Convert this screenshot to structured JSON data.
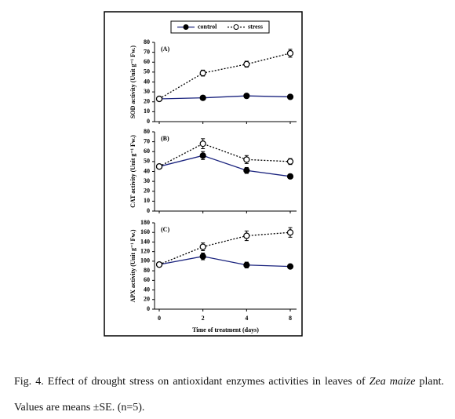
{
  "chart_data": [
    {
      "type": "line",
      "title": "(A)",
      "ylabel": "SOD activity (Unit g⁻¹ Fw.)",
      "ylim": [
        0,
        80
      ],
      "yticks": [
        0,
        10,
        20,
        30,
        40,
        50,
        60,
        70,
        80
      ],
      "legend": "top",
      "series": [
        {
          "name": "control",
          "color": "#1a237e",
          "line_style": "solid",
          "marker_fill": "#000000",
          "values": [
            23,
            24,
            26,
            25
          ],
          "errors": [
            null,
            1,
            1,
            1
          ]
        },
        {
          "name": "stress",
          "color": "#000000",
          "line_style": "dotted",
          "marker_fill": "#ffffff",
          "values": [
            23,
            49,
            58,
            69
          ],
          "errors": [
            null,
            3,
            3,
            4
          ]
        }
      ]
    },
    {
      "type": "line",
      "title": "(B)",
      "ylabel": "CAT activity (Unit g⁻¹ Fw.)",
      "ylim": [
        0,
        80
      ],
      "yticks": [
        0,
        10,
        20,
        30,
        40,
        50,
        60,
        70,
        80
      ],
      "series": [
        {
          "color": "#1a237e",
          "line_style": "solid",
          "marker_fill": "#000000",
          "values": [
            45,
            56,
            41,
            35
          ],
          "errors": [
            null,
            4,
            3,
            1
          ]
        },
        {
          "color": "#000000",
          "line_style": "dotted",
          "marker_fill": "#ffffff",
          "values": [
            45,
            68,
            52,
            50
          ],
          "errors": [
            null,
            5,
            4,
            3
          ]
        }
      ]
    },
    {
      "type": "line",
      "title": "(C)",
      "ylabel": "APX activity (Unit g⁻¹ Fw.)",
      "xlabel": "Time of treatment (days)",
      "categories": [
        "0",
        "2",
        "4",
        "8"
      ],
      "ylim": [
        0,
        180
      ],
      "yticks": [
        0,
        20,
        40,
        60,
        80,
        100,
        120,
        140,
        160,
        180
      ],
      "series": [
        {
          "color": "#1a237e",
          "line_style": "solid",
          "marker_fill": "#000000",
          "values": [
            93,
            110,
            92,
            89
          ],
          "errors": [
            null,
            7,
            6,
            4
          ]
        },
        {
          "color": "#000000",
          "line_style": "dotted",
          "marker_fill": "#ffffff",
          "values": [
            93,
            130,
            153,
            160
          ],
          "errors": [
            null,
            8,
            10,
            10
          ]
        }
      ]
    }
  ],
  "caption": {
    "parts": [
      "Fig. 4. Effect of drought stress on antioxidant enzymes activities in leaves of ",
      "Zea maize",
      " plant. Values are means ±SE. (n=5)."
    ]
  }
}
